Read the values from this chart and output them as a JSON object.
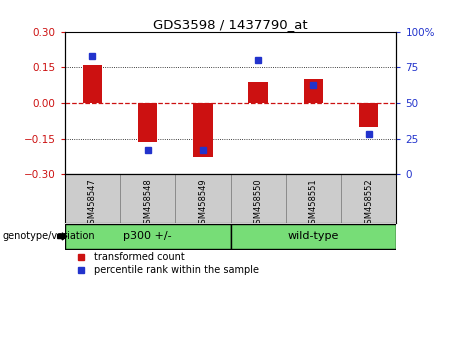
{
  "title": "GDS3598 / 1437790_at",
  "samples": [
    "GSM458547",
    "GSM458548",
    "GSM458549",
    "GSM458550",
    "GSM458551",
    "GSM458552"
  ],
  "bar_values": [
    0.162,
    -0.162,
    -0.225,
    0.09,
    0.103,
    -0.1
  ],
  "percentile_values": [
    83,
    17,
    17,
    80,
    63,
    28
  ],
  "bar_color": "#cc1111",
  "dot_color": "#2233cc",
  "ylim_left": [
    -0.3,
    0.3
  ],
  "ylim_right": [
    0,
    100
  ],
  "yticks_left": [
    -0.3,
    -0.15,
    0,
    0.15,
    0.3
  ],
  "yticks_right": [
    0,
    25,
    50,
    75,
    100
  ],
  "group_label_p300": "p300 +/-",
  "group_label_wt": "wild-type",
  "group_color": "#77dd77",
  "genotype_label": "genotype/variation",
  "legend_bar_label": "transformed count",
  "legend_dot_label": "percentile rank within the sample",
  "sample_bg_color": "#cccccc",
  "plot_bg": "#ffffff",
  "zero_line_color": "#cc1111",
  "bar_width": 0.35,
  "dot_size": 5
}
